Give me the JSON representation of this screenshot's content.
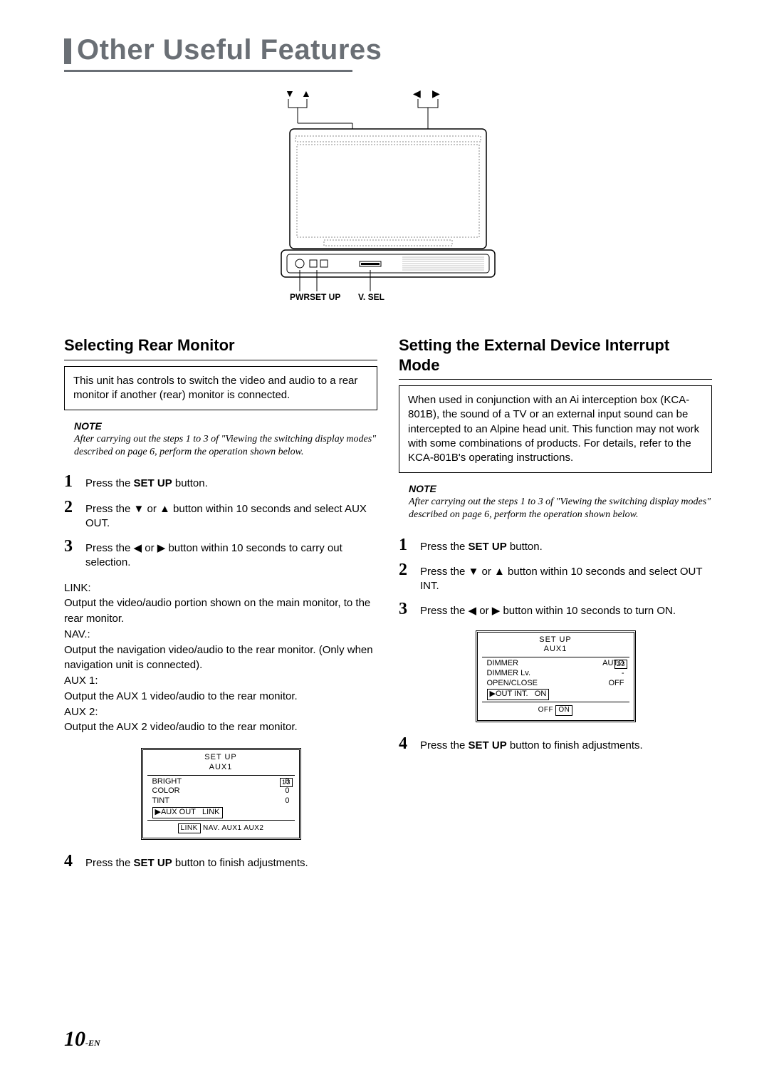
{
  "title": "Other Useful Features",
  "diagram": {
    "arrows_top_left": [
      "▼",
      "▲"
    ],
    "arrows_top_right": [
      "◀",
      "▶"
    ],
    "labels_bottom": [
      "PWR",
      "SET UP",
      "V. SEL"
    ]
  },
  "left": {
    "heading": "Selecting Rear Monitor",
    "intro": "This unit has controls to switch the video and audio to a rear monitor if another (rear) monitor is connected.",
    "note_label": "NOTE",
    "note_text": "After carrying out the steps 1 to 3 of \"Viewing the switching display modes\" described on page 6, perform the operation shown below.",
    "steps": [
      {
        "n": "1",
        "html": "Press the <b>SET UP</b> button."
      },
      {
        "n": "2",
        "html": "Press the ▼ or ▲ button within 10 seconds and select AUX OUT."
      },
      {
        "n": "3",
        "html": "Press the ◀ or ▶ button within 10 seconds to carry out selection."
      }
    ],
    "definitions": "LINK:<br>Output the video/audio portion shown on the main monitor, to the rear monitor.<br>NAV.:<br>Output the navigation video/audio to the rear monitor. (Only when navigation unit is connected).<br>AUX 1:<br>Output the AUX 1 video/audio to the rear monitor.<br>AUX 2:<br>Output the AUX 2 video/audio to the rear monitor.",
    "osd": {
      "title": "SET UP",
      "sub": "AUX1",
      "page_badge": "1⁄3",
      "rows": [
        {
          "l": "BRIGHT",
          "r": "0"
        },
        {
          "l": "COLOR",
          "r": "0"
        },
        {
          "l": "TINT",
          "r": "0"
        }
      ],
      "selected_row": {
        "l": "▶AUX OUT",
        "r": "LINK"
      },
      "options": [
        "LINK",
        "NAV.",
        "AUX1",
        "AUX2"
      ],
      "selected_option_index": 0
    },
    "step4": {
      "n": "4",
      "html": "Press the <b>SET UP</b> button to finish adjustments."
    }
  },
  "right": {
    "heading": "Setting the External Device Interrupt Mode",
    "intro": "When used in conjunction with an Ai interception box (KCA-801B), the sound of a TV or an external input sound can be intercepted to an Alpine head unit.  This function may not work with some combinations of products.  For details, refer to the KCA-801B's operating instructions.",
    "note_label": "NOTE",
    "note_text": "After carrying out the steps 1 to 3 of \"Viewing the switching display modes\" described on page 6, perform the operation shown below.",
    "steps": [
      {
        "n": "1",
        "html": "Press the <b>SET UP</b> button."
      },
      {
        "n": "2",
        "html": "Press the ▼ or ▲ button within 10 seconds and select OUT INT."
      },
      {
        "n": "3",
        "html": "Press the ◀ or ▶ button within 10 seconds to turn ON."
      }
    ],
    "osd": {
      "title": "SET UP",
      "sub": "AUX1",
      "page_badge": "2⁄3",
      "rows": [
        {
          "l": "DIMMER",
          "r": "AUTO"
        },
        {
          "l": "DIMMER Lv.",
          "r": "-"
        },
        {
          "l": "OPEN/CLOSE",
          "r": "OFF"
        }
      ],
      "selected_row": {
        "l": "▶OUT INT.",
        "r": "ON"
      },
      "options": [
        "OFF",
        "ON"
      ],
      "selected_option_index": 1
    },
    "step4": {
      "n": "4",
      "html": "Press the <b>SET UP</b> button to finish adjustments."
    }
  },
  "page_number": "10",
  "page_suffix": "-EN",
  "colors": {
    "accent": "#6a6f75",
    "text": "#000000",
    "background": "#ffffff"
  }
}
